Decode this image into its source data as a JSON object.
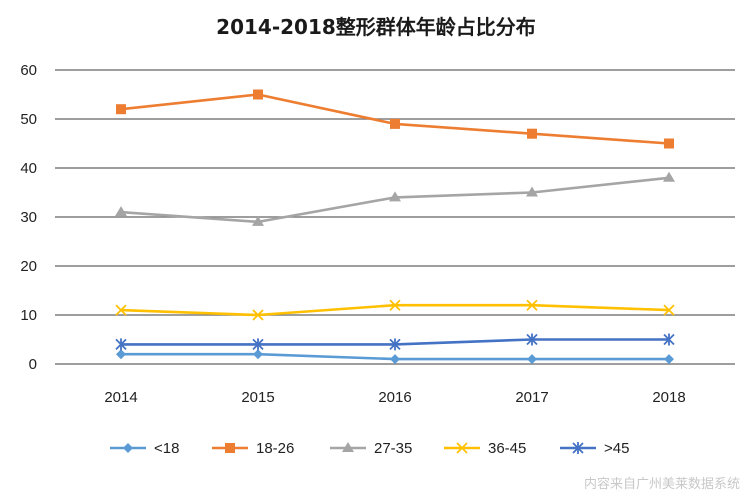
{
  "chart_data": {
    "type": "line",
    "title": "2014-2018整形群体年龄占比分布",
    "categories": [
      "2014",
      "2015",
      "2016",
      "2017",
      "2018"
    ],
    "ylim": [
      0,
      60
    ],
    "yticks": [
      0,
      10,
      20,
      30,
      40,
      50,
      60
    ],
    "grid": "horizontal",
    "legend_position": "bottom",
    "series": [
      {
        "name": "<18",
        "values": [
          2,
          2,
          1,
          1,
          1
        ],
        "color": "#5b9bd5",
        "marker": "diamond"
      },
      {
        "name": "18-26",
        "values": [
          52,
          55,
          49,
          47,
          45
        ],
        "color": "#ed7d31",
        "marker": "square"
      },
      {
        "name": "27-35",
        "values": [
          31,
          29,
          34,
          35,
          38
        ],
        "color": "#a5a5a5",
        "marker": "triangle"
      },
      {
        "name": "36-45",
        "values": [
          11,
          10,
          12,
          12,
          11
        ],
        "color": "#ffc000",
        "marker": "x"
      },
      {
        "name": ">45",
        "values": [
          4,
          4,
          4,
          5,
          5
        ],
        "color": "#4472c4",
        "marker": "star"
      }
    ]
  },
  "watermark": "内容来自广州美莱数据系统"
}
